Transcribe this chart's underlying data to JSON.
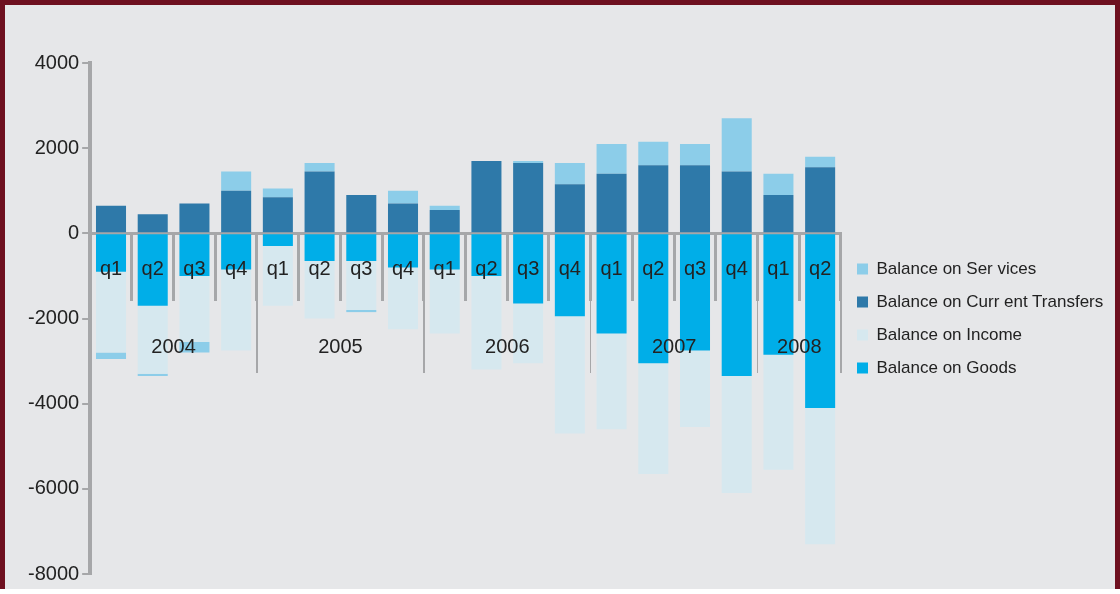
{
  "chart_data": {
    "type": "bar",
    "stacked": true,
    "categories": [
      "q1",
      "q2",
      "q3",
      "q4",
      "q1",
      "q2",
      "q3",
      "q4",
      "q1",
      "q2",
      "q3",
      "q4",
      "q1",
      "q2",
      "q3",
      "q4",
      "q1",
      "q2"
    ],
    "series": [
      {
        "name": "Balance on Goods",
        "color": "#00aee8",
        "values": [
          -900,
          -1700,
          -1000,
          -850,
          -300,
          -650,
          -650,
          -800,
          -850,
          -1000,
          -1650,
          -1950,
          -2350,
          -3050,
          -2750,
          -3350,
          -2850,
          -4100
        ]
      },
      {
        "name": "Balance on Income",
        "color": "#d6e8ef",
        "values": [
          -1900,
          -1600,
          -1550,
          -1900,
          -1400,
          -1350,
          -1150,
          -1450,
          -1500,
          -2200,
          -1400,
          -2750,
          -2250,
          -2600,
          -1800,
          -2750,
          -2700,
          -3200
        ]
      },
      {
        "name": "Balance on Curr ent Transfers",
        "color": "#2e79a9",
        "values": [
          650,
          450,
          700,
          1000,
          850,
          1450,
          900,
          700,
          550,
          1700,
          1650,
          1150,
          1400,
          1600,
          1600,
          1450,
          900,
          1550
        ]
      },
      {
        "name": "Balance on Ser vices",
        "color": "#8ccde9",
        "values": [
          -150,
          -50,
          -250,
          450,
          200,
          200,
          -50,
          300,
          100,
          null,
          50,
          500,
          700,
          550,
          500,
          1250,
          500,
          250
        ]
      }
    ],
    "ylim": [
      -8000,
      4000
    ],
    "yticks": [
      -8000,
      -6000,
      -4000,
      -2000,
      0,
      2000,
      4000
    ],
    "legend": "right",
    "grid": false,
    "annotations": [
      "2004",
      "2005",
      "2006",
      "2007",
      "2008"
    ]
  }
}
